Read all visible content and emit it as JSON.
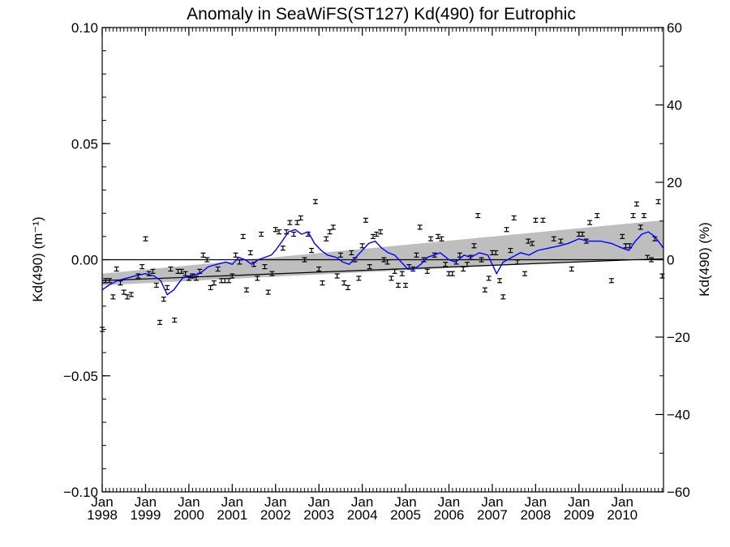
{
  "chart_data": {
    "type": "scatter",
    "title": "Anomaly in SeaWiFS(ST127) Kd(490) for Eutrophic",
    "ylabel": "Kd(490) (m⁻¹)",
    "ylabel_right": "Kd(490) (%)",
    "xlim": [
      1998.0,
      2010.95
    ],
    "ylim": [
      -0.1,
      0.1
    ],
    "ylim_right": [
      -60,
      60
    ],
    "y_ticks": [
      "0.10",
      "0.05",
      "0.00",
      "−0.05",
      "−0.10"
    ],
    "y_tick_values": [
      0.1,
      0.05,
      0.0,
      -0.05,
      -0.1
    ],
    "y_right_ticks": [
      "60",
      "40",
      "20",
      "0",
      "−20",
      "−40",
      "−60"
    ],
    "y_right_tick_values": [
      60,
      40,
      20,
      0,
      -20,
      -40,
      -60
    ],
    "x_ticks": [
      {
        "month": "Jan",
        "year": "1998",
        "value": 1998
      },
      {
        "month": "Jan",
        "year": "1999",
        "value": 1999
      },
      {
        "month": "Jan",
        "year": "2000",
        "value": 2000
      },
      {
        "month": "Jan",
        "year": "2001",
        "value": 2001
      },
      {
        "month": "Jan",
        "year": "2002",
        "value": 2002
      },
      {
        "month": "Jan",
        "year": "2003",
        "value": 2003
      },
      {
        "month": "Jan",
        "year": "2004",
        "value": 2004
      },
      {
        "month": "Jan",
        "year": "2005",
        "value": 2005
      },
      {
        "month": "Jan",
        "year": "2006",
        "value": 2006
      },
      {
        "month": "Jan",
        "year": "2007",
        "value": 2007
      },
      {
        "month": "Jan",
        "year": "2008",
        "value": 2008
      },
      {
        "month": "Jan",
        "year": "2009",
        "value": 2009
      },
      {
        "month": "Jan",
        "year": "2010",
        "value": 2010
      }
    ],
    "anomaly_points": {
      "x": [
        1998.0,
        1998.08,
        1998.17,
        1998.25,
        1998.33,
        1998.42,
        1998.5,
        1998.58,
        1998.67,
        1998.83,
        1998.92,
        1999.0,
        1999.08,
        1999.17,
        1999.25,
        1999.33,
        1999.42,
        1999.5,
        1999.58,
        1999.67,
        1999.75,
        1999.83,
        1999.92,
        2000.0,
        2000.08,
        2000.17,
        2000.25,
        2000.33,
        2000.42,
        2000.5,
        2000.58,
        2000.67,
        2000.75,
        2000.83,
        2000.92,
        2001.0,
        2001.08,
        2001.17,
        2001.25,
        2001.33,
        2001.42,
        2001.5,
        2001.58,
        2001.67,
        2001.75,
        2001.83,
        2001.92,
        2002.0,
        2002.08,
        2002.17,
        2002.25,
        2002.33,
        2002.42,
        2002.5,
        2002.58,
        2002.67,
        2002.75,
        2002.83,
        2002.92,
        2003.0,
        2003.08,
        2003.17,
        2003.25,
        2003.33,
        2003.42,
        2003.5,
        2003.58,
        2003.67,
        2003.75,
        2003.83,
        2003.92,
        2004.0,
        2004.08,
        2004.17,
        2004.25,
        2004.33,
        2004.42,
        2004.5,
        2004.58,
        2004.67,
        2004.75,
        2004.83,
        2004.92,
        2005.0,
        2005.08,
        2005.17,
        2005.25,
        2005.33,
        2005.42,
        2005.5,
        2005.58,
        2005.67,
        2005.75,
        2005.83,
        2005.92,
        2006.0,
        2006.08,
        2006.17,
        2006.25,
        2006.33,
        2006.42,
        2006.5,
        2006.58,
        2006.67,
        2006.75,
        2006.83,
        2006.92,
        2007.0,
        2007.08,
        2007.17,
        2007.25,
        2007.33,
        2007.42,
        2007.5,
        2007.58,
        2007.75,
        2007.83,
        2007.92,
        2008.0,
        2008.17,
        2008.42,
        2008.58,
        2008.83,
        2009.0,
        2009.08,
        2009.17,
        2009.25,
        2009.42,
        2009.75,
        2010.0,
        2010.08,
        2010.17,
        2010.25,
        2010.33,
        2010.42,
        2010.5,
        2010.58,
        2010.67,
        2010.75,
        2010.83,
        2010.92
      ],
      "y": [
        -0.03,
        -0.009,
        -0.009,
        -0.016,
        -0.004,
        -0.01,
        -0.014,
        -0.016,
        -0.015,
        -0.007,
        -0.003,
        0.009,
        -0.006,
        -0.005,
        -0.011,
        -0.027,
        -0.017,
        -0.012,
        -0.004,
        -0.026,
        -0.005,
        -0.005,
        -0.006,
        -0.008,
        -0.007,
        -0.008,
        -0.005,
        0.002,
        0.0,
        -0.012,
        -0.01,
        -0.004,
        -0.009,
        -0.009,
        -0.009,
        -0.007,
        0.002,
        -0.001,
        0.01,
        -0.013,
        0.003,
        -0.002,
        -0.008,
        0.011,
        -0.003,
        -0.014,
        -0.006,
        0.013,
        0.012,
        0.005,
        0.012,
        0.016,
        0.011,
        0.016,
        0.018,
        0.0,
        0.011,
        0.004,
        0.025,
        -0.004,
        -0.01,
        0.009,
        0.012,
        0.014,
        -0.007,
        0.002,
        -0.01,
        -0.012,
        0.003,
        0.0,
        -0.008,
        0.006,
        0.017,
        -0.003,
        0.01,
        0.011,
        0.012,
        0.0,
        -0.001,
        -0.008,
        -0.005,
        -0.011,
        -0.006,
        -0.011,
        -0.003,
        -0.004,
        0.002,
        0.014,
        0.0,
        -0.005,
        0.009,
        0.002,
        0.01,
        0.009,
        -0.002,
        -0.006,
        -0.006,
        -0.001,
        0.002,
        -0.004,
        -0.002,
        0.001,
        0.006,
        0.019,
        0.0,
        -0.013,
        -0.008,
        0.003,
        0.003,
        -0.009,
        -0.016,
        0.013,
        0.004,
        0.018,
        -0.001,
        -0.006,
        0.008,
        0.007,
        0.017,
        0.017,
        0.009,
        0.008,
        -0.004,
        0.011,
        0.011,
        0.008,
        0.016,
        0.019,
        -0.009,
        0.01,
        0.006,
        0.006,
        0.019,
        0.024,
        0.014,
        0.019,
        0.001,
        0.0,
        0.009,
        0.025,
        -0.007
      ]
    },
    "running_mean": {
      "x": [
        1998.0,
        1998.15,
        1998.35,
        1998.55,
        1998.75,
        1999.0,
        1999.2,
        1999.35,
        1999.5,
        1999.65,
        1999.85,
        2000.0,
        2000.25,
        2000.45,
        2000.65,
        2000.85,
        2001.0,
        2001.15,
        2001.3,
        2001.45,
        2001.6,
        2001.75,
        2001.9,
        2002.0,
        2002.15,
        2002.3,
        2002.45,
        2002.6,
        2002.75,
        2002.9,
        2003.05,
        2003.2,
        2003.4,
        2003.55,
        2003.7,
        2003.85,
        2004.0,
        2004.15,
        2004.3,
        2004.45,
        2004.6,
        2004.75,
        2004.9,
        2005.05,
        2005.2,
        2005.35,
        2005.5,
        2005.65,
        2005.8,
        2006.0,
        2006.15,
        2006.35,
        2006.5,
        2006.7,
        2006.9,
        2007.0,
        2007.1,
        2007.25,
        2007.45,
        2007.65,
        2007.85,
        2008.05,
        2008.3,
        2008.55,
        2008.75,
        2009.0,
        2009.2,
        2009.5,
        2009.75,
        2010.0,
        2010.15,
        2010.3,
        2010.45,
        2010.6,
        2010.75,
        2010.95
      ],
      "y": [
        -0.013,
        -0.011,
        -0.009,
        -0.008,
        -0.007,
        -0.006,
        -0.007,
        -0.009,
        -0.015,
        -0.013,
        -0.008,
        -0.007,
        -0.006,
        -0.003,
        -0.002,
        -0.001,
        -0.002,
        0.001,
        0.0,
        -0.002,
        0.0,
        0.001,
        0.002,
        0.004,
        0.008,
        0.012,
        0.013,
        0.011,
        0.012,
        0.007,
        0.004,
        0.002,
        0.001,
        -0.001,
        -0.002,
        0.001,
        0.004,
        0.007,
        0.008,
        0.005,
        0.003,
        0.002,
        -0.001,
        -0.004,
        -0.004,
        -0.002,
        0.001,
        0.002,
        0.003,
        0.0,
        -0.001,
        0.002,
        0.001,
        0.003,
        0.002,
        -0.002,
        -0.006,
        -0.001,
        0.001,
        0.003,
        0.002,
        0.004,
        0.005,
        0.006,
        0.007,
        0.009,
        0.008,
        0.008,
        0.007,
        0.005,
        0.004,
        0.008,
        0.011,
        0.012,
        0.01,
        0.005
      ]
    },
    "trend_band": {
      "x": [
        1998.0,
        2010.95
      ],
      "lower": [
        -0.011,
        0.001
      ],
      "upper": [
        -0.006,
        0.017
      ]
    },
    "baseline_trend": {
      "x": [
        1998.0,
        2010.95
      ],
      "y": [
        -0.009,
        0.0005
      ]
    },
    "zero_line": 0.0,
    "colors": {
      "running_mean": "#0000ff",
      "band": "#bebebe",
      "points": "#000000"
    },
    "grid": false
  }
}
